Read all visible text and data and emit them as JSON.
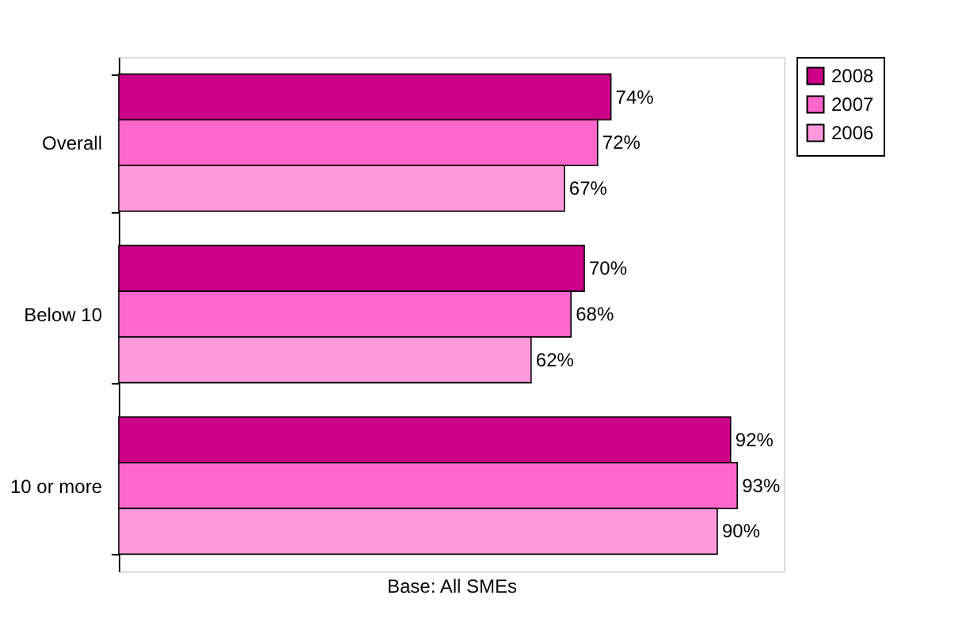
{
  "chart_data": {
    "type": "bar",
    "orientation": "horizontal",
    "xlabel": "Base: All SMEs",
    "categories": [
      "Overall",
      "Below 10",
      "10 or more"
    ],
    "series": [
      {
        "name": "2008",
        "color": "#cc0088",
        "values": [
          74,
          70,
          92
        ],
        "value_labels": [
          "74%",
          "70%",
          "92%"
        ]
      },
      {
        "name": "2007",
        "color": "#ff66cc",
        "values": [
          72,
          68,
          93
        ],
        "value_labels": [
          "72%",
          "68%",
          "93%"
        ]
      },
      {
        "name": "2006",
        "color": "#ff99dd",
        "values": [
          67,
          62,
          90
        ],
        "value_labels": [
          "67%",
          "62%",
          "90%"
        ]
      }
    ],
    "legend": "top right",
    "grid": false,
    "tick_labels": "y"
  }
}
